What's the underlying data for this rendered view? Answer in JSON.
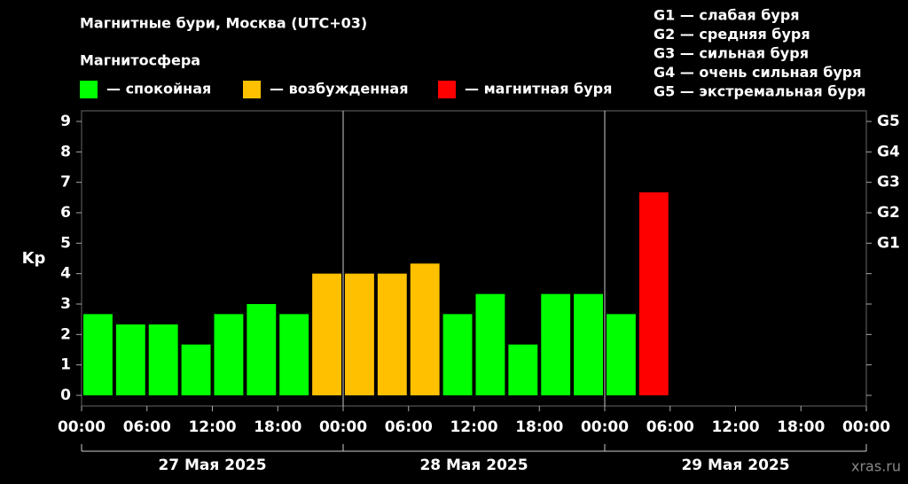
{
  "chart_data": {
    "type": "bar",
    "title": "Магнитные бури, Москва (UTC+03)",
    "legend_title": "Магнитосфера",
    "legend": [
      {
        "label": "— спокойная",
        "color": "#00ff00"
      },
      {
        "label": "— возбужденная",
        "color": "#ffc000"
      },
      {
        "label": "— магнитная буря",
        "color": "#ff0000"
      }
    ],
    "storm_levels": [
      "G1 — слабая буря",
      "G2 — средняя буря",
      "G3 — сильная буря",
      "G4 — очень сильная буря",
      "G5 — экстремальная буря"
    ],
    "y_label": "Kp",
    "x": [
      0,
      3,
      6,
      9,
      12,
      15,
      18,
      21,
      24,
      27,
      30,
      33,
      36,
      39,
      42,
      45,
      48,
      51
    ],
    "series": [
      {
        "values": [
          2.67,
          2.33,
          2.33,
          1.67,
          2.67,
          3.0,
          2.67,
          4.0,
          4.0,
          4.0,
          4.33,
          2.67,
          3.33,
          1.67,
          3.33,
          3.33,
          2.67,
          6.67
        ],
        "colors": [
          "#00ff00",
          "#00ff00",
          "#00ff00",
          "#00ff00",
          "#00ff00",
          "#00ff00",
          "#00ff00",
          "#ffc000",
          "#ffc000",
          "#ffc000",
          "#ffc000",
          "#00ff00",
          "#00ff00",
          "#00ff00",
          "#00ff00",
          "#00ff00",
          "#00ff00",
          "#ff0000"
        ]
      }
    ],
    "bar_width": 3,
    "xlim": [
      0,
      72
    ],
    "xticks": [
      {
        "value": 0,
        "label": "00:00"
      },
      {
        "value": 6,
        "label": "06:00"
      },
      {
        "value": 12,
        "label": "12:00"
      },
      {
        "value": 18,
        "label": "18:00"
      },
      {
        "value": 24,
        "label": "00:00"
      },
      {
        "value": 30,
        "label": "06:00"
      },
      {
        "value": 36,
        "label": "12:00"
      },
      {
        "value": 42,
        "label": "18:00"
      },
      {
        "value": 48,
        "label": "00:00"
      },
      {
        "value": 54,
        "label": "06:00"
      },
      {
        "value": 60,
        "label": "12:00"
      },
      {
        "value": 66,
        "label": "18:00"
      },
      {
        "value": 72,
        "label": "00:00"
      }
    ],
    "days": [
      "27 Мая 2025",
      "28 Мая 2025",
      "29 Мая 2025"
    ],
    "day_length": 24,
    "ylim": [
      -0.35,
      9.35
    ],
    "yticks": [
      0,
      1,
      2,
      3,
      4,
      5,
      6,
      7,
      8,
      9
    ],
    "y2ticks": [
      {
        "value": 5,
        "label": "G1"
      },
      {
        "value": 6,
        "label": "G2"
      },
      {
        "value": 7,
        "label": "G3"
      },
      {
        "value": 8,
        "label": "G4"
      },
      {
        "value": 9,
        "label": "G5"
      }
    ],
    "watermark": "xras.ru"
  }
}
